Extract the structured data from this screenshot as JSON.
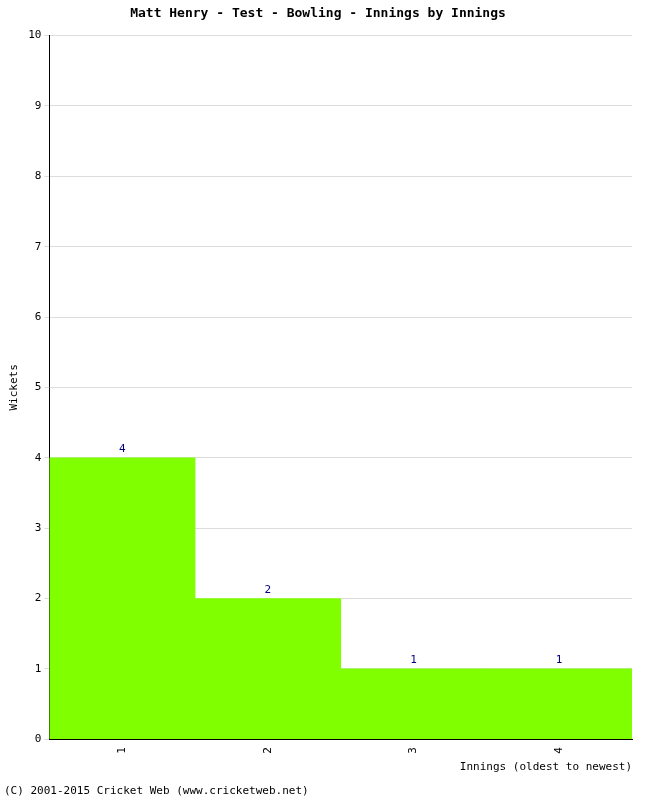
{
  "chart_data": {
    "type": "bar",
    "title": "Matt Henry - Test - Bowling - Innings by Innings",
    "categories": [
      "1",
      "2",
      "3",
      "4"
    ],
    "values": [
      4,
      2,
      1,
      1
    ],
    "color": "#7fff00",
    "ylim": [
      0,
      10
    ],
    "yticks": [
      0,
      1,
      2,
      3,
      4,
      5,
      6,
      7,
      8,
      9,
      10
    ],
    "grid": true,
    "data_labels": true,
    "x_label": "Innings (oldest to newest)",
    "y_label": "Wickets",
    "annotations": [
      "(C) 2001-2015 Cricket Web (www.cricketweb.net)"
    ]
  }
}
